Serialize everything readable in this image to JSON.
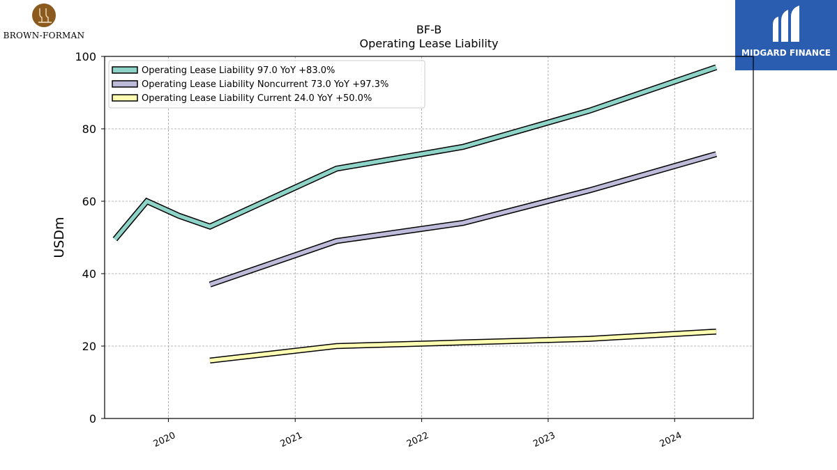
{
  "brand": {
    "name": "BROWN-FORMAN",
    "primary_color": "#8a5a1e"
  },
  "watermark": {
    "name": "MIDGARD FINANCE",
    "bg_color": "#2a5db0"
  },
  "chart_data": {
    "type": "line",
    "title": "BF-B",
    "subtitle": "Operating Lease Liability",
    "ylabel": "USDm",
    "xlabel": "",
    "xlim": [
      "2019-07-01",
      "2024-08-15"
    ],
    "ylim": [
      0,
      100
    ],
    "yticks": [
      0,
      20,
      40,
      60,
      80,
      100
    ],
    "xticks": [
      "2020",
      "2021",
      "2022",
      "2023",
      "2024"
    ],
    "grid": true,
    "legend_position": "top-left",
    "series": [
      {
        "name": "Operating Lease Liability  97.0 YoY +83.0%",
        "color": "#8dd3c7",
        "points": [
          [
            "2019-07-31",
            49.5
          ],
          [
            "2019-10-31",
            60
          ],
          [
            "2020-01-31",
            56
          ],
          [
            "2020-04-30",
            53
          ],
          [
            "2021-04-30",
            69
          ],
          [
            "2022-04-30",
            75
          ],
          [
            "2023-04-30",
            85
          ],
          [
            "2024-04-30",
            97
          ]
        ]
      },
      {
        "name": "Operating Lease Liability Noncurrent  73.0 YoY +97.3%",
        "color": "#bebada",
        "points": [
          [
            "2020-04-30",
            37
          ],
          [
            "2021-04-30",
            49
          ],
          [
            "2022-04-30",
            54
          ],
          [
            "2023-04-30",
            63
          ],
          [
            "2024-04-30",
            73
          ]
        ]
      },
      {
        "name": "Operating Lease Liability Current  24.0 YoY +50.0%",
        "color": "#ffffb3",
        "points": [
          [
            "2020-04-30",
            16
          ],
          [
            "2021-04-30",
            20
          ],
          [
            "2022-04-30",
            21
          ],
          [
            "2023-04-30",
            22
          ],
          [
            "2024-04-30",
            24
          ]
        ]
      }
    ]
  }
}
